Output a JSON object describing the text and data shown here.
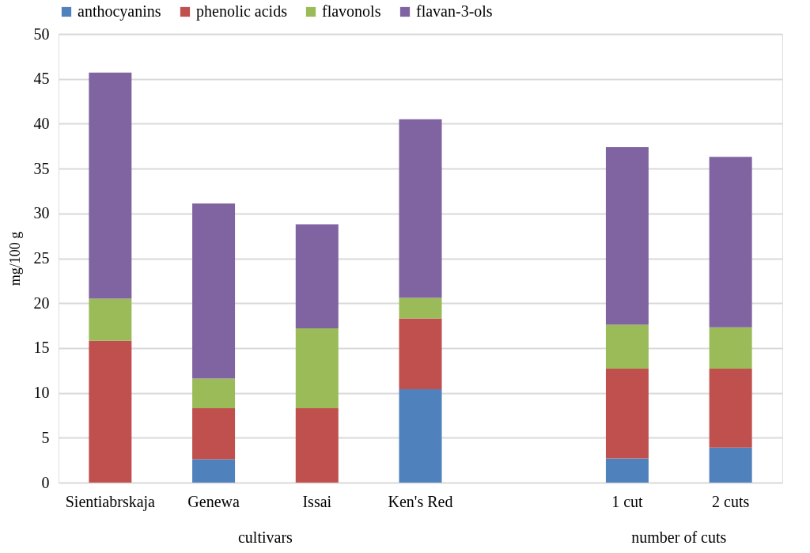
{
  "chart_data": {
    "type": "bar",
    "stacked": true,
    "ylabel": "mg/100 g",
    "categories": [
      "Sientiabrskaja",
      "Genewa",
      "Issai",
      "Ken's Red",
      null,
      "1 cut",
      "2 cuts"
    ],
    "series": [
      {
        "name": "anthocyanins",
        "color": "#4f81bd",
        "values": [
          null,
          2.6,
          null,
          10.4,
          null,
          2.7,
          3.9
        ]
      },
      {
        "name": "phenolic acids",
        "color": "#c0504d",
        "values": [
          15.8,
          5.7,
          8.3,
          7.9,
          null,
          10.0,
          8.8
        ]
      },
      {
        "name": "flavonols",
        "color": "#9bbb59",
        "values": [
          4.7,
          3.3,
          8.9,
          2.3,
          null,
          4.9,
          4.6
        ]
      },
      {
        "name": "flavan-3-ols",
        "color": "#8064a2",
        "values": [
          25.2,
          19.5,
          11.6,
          19.9,
          null,
          19.8,
          19.0
        ]
      }
    ],
    "ylim": [
      0,
      50
    ],
    "yticks": [
      0,
      5,
      10,
      15,
      20,
      25,
      30,
      35,
      40,
      45,
      50
    ],
    "grid": "y",
    "legend": "top",
    "annotations": [
      "cultivars",
      "number of cuts"
    ]
  }
}
